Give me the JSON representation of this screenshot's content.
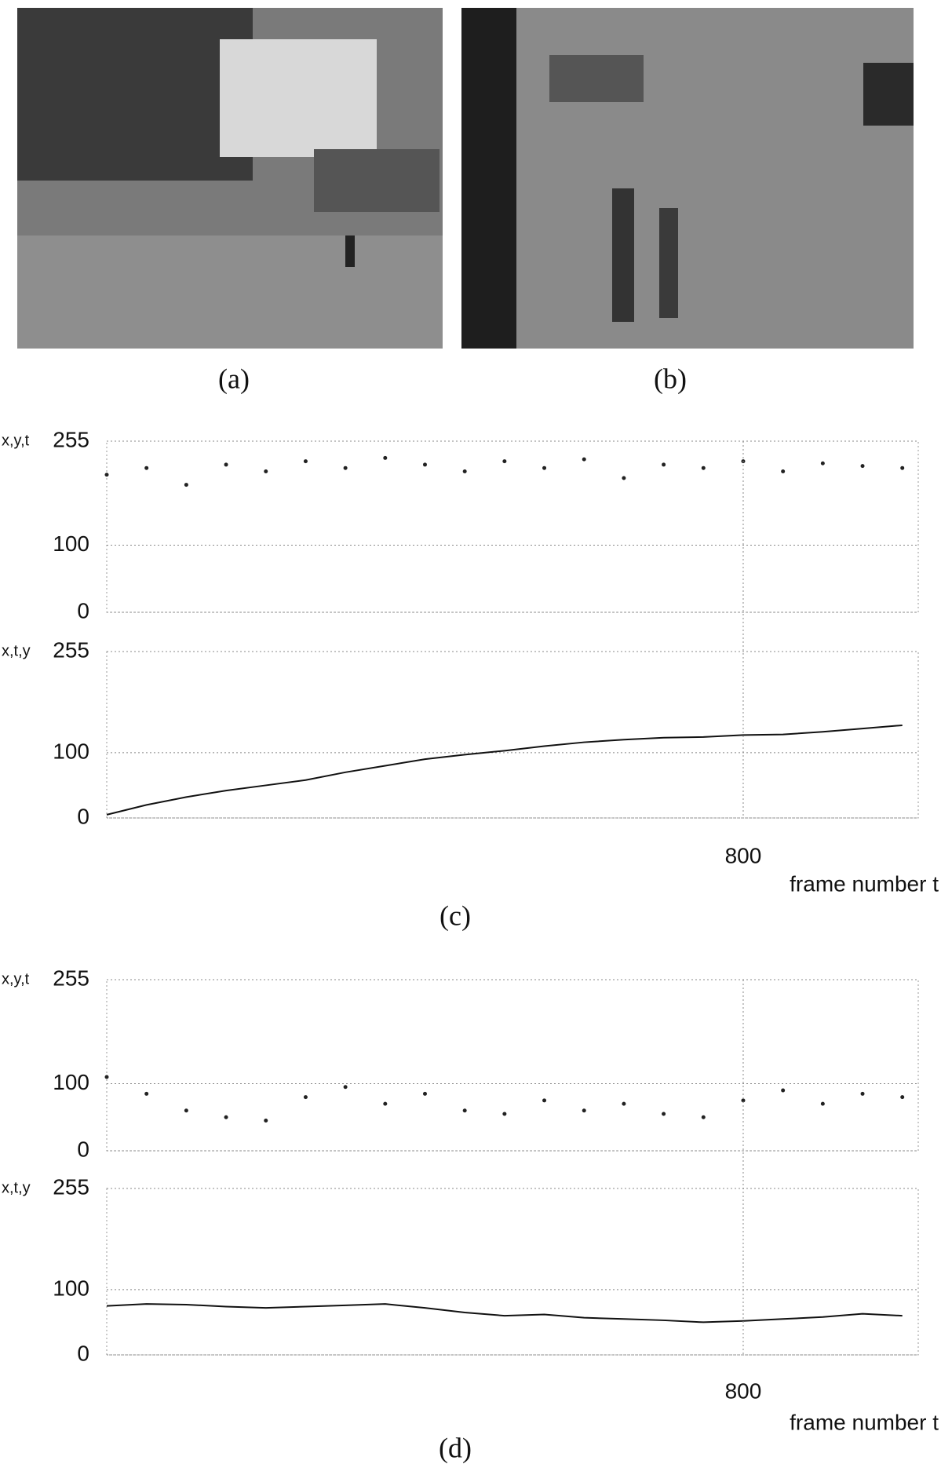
{
  "photo_captions": [
    "(a)",
    "(b)"
  ],
  "chart_data": [
    {
      "type": "line",
      "caption": "(c)",
      "xlabel": "frame number t",
      "xlim": [
        0,
        1020
      ],
      "xticks": [
        800
      ],
      "x": [
        0,
        50,
        100,
        150,
        200,
        250,
        300,
        350,
        400,
        450,
        500,
        550,
        600,
        650,
        700,
        750,
        800,
        850,
        900,
        950,
        1000
      ],
      "panels": [
        {
          "ylabel": "x,y,t",
          "ylim": [
            0,
            255
          ],
          "yticks": [
            0,
            100,
            255
          ],
          "marker": "dots",
          "values": [
            205,
            215,
            190,
            220,
            210,
            225,
            215,
            230,
            220,
            210,
            225,
            215,
            228,
            200,
            220,
            215,
            225,
            210,
            222,
            218,
            215
          ]
        },
        {
          "ylabel": "x,t,y",
          "ylim": [
            0,
            255
          ],
          "yticks": [
            0,
            100,
            255
          ],
          "marker": "line",
          "values": [
            5,
            20,
            32,
            42,
            50,
            58,
            70,
            80,
            90,
            97,
            103,
            110,
            116,
            120,
            123,
            124,
            127,
            128,
            132,
            137,
            142
          ]
        }
      ]
    },
    {
      "type": "line",
      "caption": "(d)",
      "xlabel": "frame number t",
      "xlim": [
        0,
        1020
      ],
      "xticks": [
        800
      ],
      "x": [
        0,
        50,
        100,
        150,
        200,
        250,
        300,
        350,
        400,
        450,
        500,
        550,
        600,
        650,
        700,
        750,
        800,
        850,
        900,
        950,
        1000
      ],
      "panels": [
        {
          "ylabel": "x,y,t",
          "ylim": [
            0,
            255
          ],
          "yticks": [
            0,
            100,
            255
          ],
          "marker": "dots",
          "values": [
            110,
            85,
            60,
            50,
            45,
            80,
            95,
            70,
            85,
            60,
            55,
            75,
            60,
            70,
            55,
            50,
            75,
            90,
            70,
            85,
            80
          ]
        },
        {
          "ylabel": "x,t,y",
          "ylim": [
            0,
            255
          ],
          "yticks": [
            0,
            100,
            255
          ],
          "marker": "line",
          "values": [
            75,
            78,
            77,
            74,
            72,
            74,
            76,
            78,
            72,
            65,
            60,
            62,
            57,
            55,
            53,
            50,
            52,
            55,
            58,
            63,
            60
          ]
        }
      ]
    }
  ]
}
